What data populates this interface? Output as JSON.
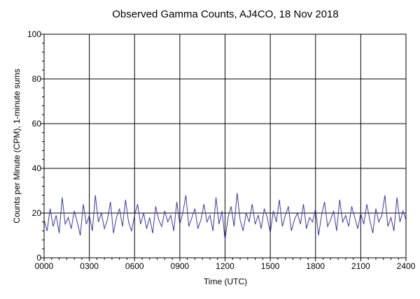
{
  "chart_data": {
    "type": "line",
    "title": "Observed Gamma Counts, AJ4CO, 18 Nov 2018",
    "xlabel": "Time (UTC)",
    "ylabel": "Counts per Minute (CPM), 1-minute sums",
    "xlim": [
      0,
      24
    ],
    "ylim": [
      0,
      100
    ],
    "x_ticks": [
      {
        "value": 0,
        "label": "0000"
      },
      {
        "value": 3,
        "label": "0300"
      },
      {
        "value": 6,
        "label": "0600"
      },
      {
        "value": 9,
        "label": "0900"
      },
      {
        "value": 12,
        "label": "1200"
      },
      {
        "value": 15,
        "label": "1500"
      },
      {
        "value": 18,
        "label": "1800"
      },
      {
        "value": 21,
        "label": "2100"
      },
      {
        "value": 24,
        "label": "2400"
      }
    ],
    "y_ticks": [
      {
        "value": 0,
        "label": "0"
      },
      {
        "value": 20,
        "label": "20"
      },
      {
        "value": 40,
        "label": "40"
      },
      {
        "value": 60,
        "label": "60"
      },
      {
        "value": 80,
        "label": "80"
      },
      {
        "value": 100,
        "label": "100"
      }
    ],
    "grid": true,
    "legend": "none",
    "series_color": "#3a3aa0",
    "series": [
      {
        "x": [
          0,
          0.2,
          0.4,
          0.6,
          0.8,
          1,
          1.2,
          1.4,
          1.6,
          1.8,
          2,
          2.2,
          2.4,
          2.6,
          2.8,
          3,
          3.2,
          3.4,
          3.6,
          3.8,
          4,
          4.2,
          4.4,
          4.6,
          4.8,
          5,
          5.2,
          5.4,
          5.6,
          5.8,
          6,
          6.2,
          6.4,
          6.6,
          6.8,
          7,
          7.2,
          7.4,
          7.6,
          7.8,
          8,
          8.2,
          8.4,
          8.6,
          8.8,
          9,
          9.2,
          9.4,
          9.6,
          9.8,
          10,
          10.2,
          10.4,
          10.6,
          10.8,
          11,
          11.2,
          11.4,
          11.6,
          11.8,
          12,
          12.2,
          12.4,
          12.6,
          12.8,
          13,
          13.2,
          13.4,
          13.6,
          13.8,
          14,
          14.2,
          14.4,
          14.6,
          14.8,
          15,
          15.2,
          15.4,
          15.6,
          15.8,
          16,
          16.2,
          16.4,
          16.6,
          16.8,
          17,
          17.2,
          17.4,
          17.6,
          17.8,
          18,
          18.2,
          18.4,
          18.6,
          18.8,
          19,
          19.2,
          19.4,
          19.6,
          19.8,
          20,
          20.2,
          20.4,
          20.6,
          20.8,
          21,
          21.2,
          21.4,
          21.6,
          21.8,
          22,
          22.2,
          22.4,
          22.6,
          22.8,
          23,
          23.2,
          23.4,
          23.6,
          23.8,
          24
        ],
        "y": [
          17,
          12,
          22,
          14,
          19,
          11,
          27,
          15,
          18,
          13,
          21,
          16,
          10,
          24,
          15,
          19,
          12,
          28,
          16,
          20,
          13,
          17,
          25,
          11,
          18,
          22,
          14,
          26,
          16,
          12,
          19,
          24,
          15,
          20,
          13,
          18,
          11,
          23,
          17,
          14,
          21,
          16,
          19,
          12,
          25,
          15,
          20,
          28,
          14,
          18,
          22,
          13,
          17,
          24,
          16,
          19,
          12,
          27,
          15,
          21,
          8,
          18,
          23,
          14,
          29,
          17,
          12,
          20,
          16,
          24,
          15,
          19,
          13,
          22,
          18,
          11,
          21,
          16,
          26,
          14,
          19,
          23,
          12,
          17,
          20,
          15,
          24,
          13,
          18,
          16,
          22,
          10,
          19,
          25,
          14,
          17,
          21,
          12,
          26,
          16,
          19,
          14,
          23,
          18,
          13,
          20,
          15,
          24,
          17,
          11,
          22,
          16,
          19,
          28,
          14,
          18,
          12,
          27,
          16,
          21,
          17
        ]
      }
    ]
  }
}
